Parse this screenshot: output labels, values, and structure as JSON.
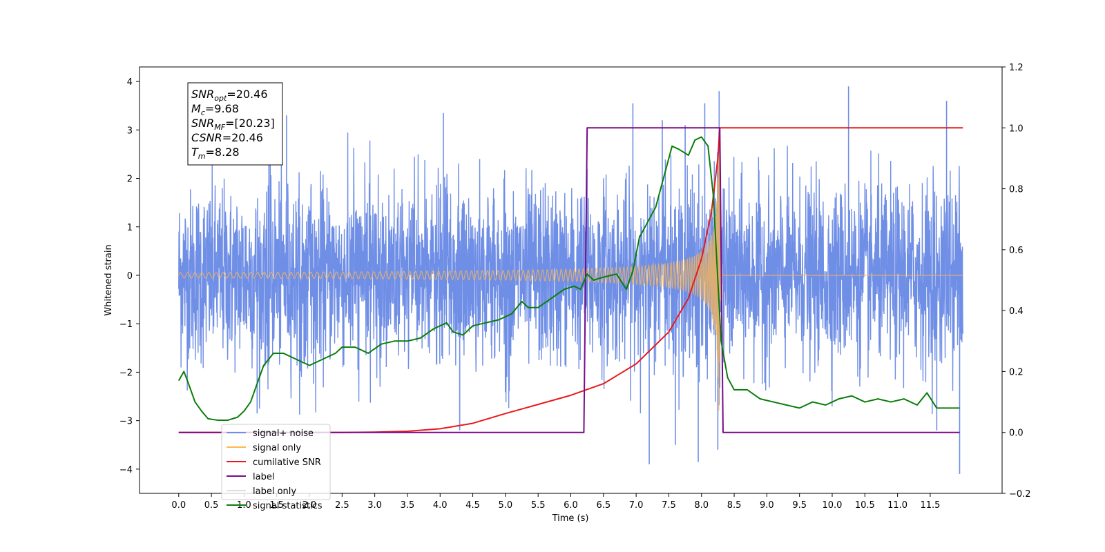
{
  "chart_data": {
    "type": "line",
    "xlabel": "Time (s)",
    "ylabel": "Whitened strain",
    "ylabel_right": "",
    "xlim": [
      -0.6,
      12.6
    ],
    "ylim": [
      -4.5,
      4.3
    ],
    "ylim_right": [
      -0.2,
      1.2
    ],
    "x_ticks": [
      0.0,
      0.5,
      1.0,
      1.5,
      2.0,
      2.5,
      3.0,
      3.5,
      4.0,
      4.5,
      5.0,
      5.5,
      6.0,
      6.5,
      7.0,
      7.5,
      8.0,
      8.5,
      9.0,
      9.5,
      10.0,
      10.5,
      11.0,
      11.5
    ],
    "x_tick_labels": [
      "0.0",
      "0.5",
      "1.0",
      "1.5",
      "2.0",
      "2.5",
      "3.0",
      "3.5",
      "4.0",
      "4.5",
      "5.0",
      "5.5",
      "6.0",
      "6.5",
      "7.0",
      "7.5",
      "8.0",
      "8.5",
      "9.0",
      "9.5",
      "10.0",
      "10.5",
      "11.0",
      "11.5"
    ],
    "y_ticks_left": [
      4,
      3,
      2,
      1,
      0,
      -1,
      -2,
      -3,
      -4
    ],
    "y_tick_labels_left": [
      "4",
      "3",
      "2",
      "1",
      "0",
      "−1",
      "−2",
      "−3",
      "−4"
    ],
    "y_ticks_right": [
      1.2,
      1.0,
      0.8,
      0.6,
      0.4,
      0.2,
      0.0,
      -0.2
    ],
    "y_tick_labels_right": [
      "1.2",
      "1.0",
      "0.8",
      "0.6",
      "0.4",
      "0.2",
      "0.0",
      "−0.2"
    ],
    "grid": false,
    "legend_position": "lower-left",
    "info_box": {
      "lines": [
        {
          "base": "SNR",
          "sub": "opt",
          "value": "=20.46"
        },
        {
          "base": "M",
          "sub": "c",
          "value": "=9.68"
        },
        {
          "base": "SNR",
          "sub": "MF",
          "value": "=[20.23]"
        },
        {
          "base": "CSNR",
          "sub": "",
          "value": "=20.46"
        },
        {
          "base": "T",
          "sub": "m",
          "value": "=8.28"
        }
      ]
    },
    "series": [
      {
        "name": "signal+ noise",
        "axis": "left",
        "color": "#6f8ee6",
        "style": "noise",
        "x_range": [
          0.0,
          12.0
        ],
        "noise_std": 0.9,
        "chirp": {
          "t_merger": 8.28,
          "peak_amplitude": 2.8
        },
        "spikes": [
          {
            "x": 1.4,
            "y": 3.2
          },
          {
            "x": 1.65,
            "y": 3.3
          },
          {
            "x": 4.05,
            "y": 3.35
          },
          {
            "x": 6.95,
            "y": 3.55
          },
          {
            "x": 7.4,
            "y": 3.2
          },
          {
            "x": 7.75,
            "y": 3.1
          },
          {
            "x": 8.05,
            "y": 3.55
          },
          {
            "x": 8.27,
            "y": 3.8
          },
          {
            "x": 10.25,
            "y": 3.9
          },
          {
            "x": 11.75,
            "y": 3.6
          },
          {
            "x": 1.2,
            "y": -2.85
          },
          {
            "x": 4.3,
            "y": -3.2
          },
          {
            "x": 7.2,
            "y": -3.9
          },
          {
            "x": 7.6,
            "y": -3.5
          },
          {
            "x": 7.95,
            "y": -3.85
          },
          {
            "x": 8.25,
            "y": -3.6
          },
          {
            "x": 11.95,
            "y": -4.1
          },
          {
            "x": 11.6,
            "y": -3.2
          }
        ]
      },
      {
        "name": "signal only",
        "axis": "left",
        "color": "#ffb74d",
        "style": "chirp",
        "x_range": [
          0.0,
          12.0
        ],
        "t_merger": 8.28,
        "peak_amplitude": 2.8
      },
      {
        "name": "cumilative SNR",
        "axis": "right",
        "color": "#e8191b",
        "points": [
          [
            0.0,
            0.0
          ],
          [
            2.5,
            0.0
          ],
          [
            3.0,
            0.001
          ],
          [
            3.5,
            0.004
          ],
          [
            4.0,
            0.012
          ],
          [
            4.5,
            0.03
          ],
          [
            5.0,
            0.062
          ],
          [
            5.5,
            0.092
          ],
          [
            6.0,
            0.122
          ],
          [
            6.5,
            0.16
          ],
          [
            7.0,
            0.225
          ],
          [
            7.5,
            0.33
          ],
          [
            7.8,
            0.44
          ],
          [
            8.0,
            0.57
          ],
          [
            8.15,
            0.72
          ],
          [
            8.25,
            0.9
          ],
          [
            8.28,
            1.0
          ],
          [
            12.0,
            1.0
          ]
        ]
      },
      {
        "name": "label",
        "axis": "right",
        "color": "#7a0a85",
        "points": [
          [
            0.0,
            0.0
          ],
          [
            6.2,
            0.0
          ],
          [
            6.25,
            1.0
          ],
          [
            8.28,
            1.0
          ],
          [
            8.33,
            0.0
          ],
          [
            11.95,
            0.0
          ]
        ]
      },
      {
        "name": "label only",
        "axis": "right",
        "color": "#dddddd",
        "hidden_in_plot": true,
        "points": []
      },
      {
        "name": "signal statistics",
        "axis": "right",
        "color": "#0a7d0a",
        "points": [
          [
            0.0,
            0.17
          ],
          [
            0.08,
            0.2
          ],
          [
            0.15,
            0.16
          ],
          [
            0.25,
            0.1
          ],
          [
            0.35,
            0.07
          ],
          [
            0.45,
            0.045
          ],
          [
            0.6,
            0.04
          ],
          [
            0.75,
            0.04
          ],
          [
            0.9,
            0.05
          ],
          [
            1.0,
            0.07
          ],
          [
            1.1,
            0.1
          ],
          [
            1.2,
            0.16
          ],
          [
            1.3,
            0.22
          ],
          [
            1.45,
            0.26
          ],
          [
            1.6,
            0.26
          ],
          [
            1.8,
            0.24
          ],
          [
            2.0,
            0.22
          ],
          [
            2.2,
            0.24
          ],
          [
            2.4,
            0.26
          ],
          [
            2.5,
            0.28
          ],
          [
            2.7,
            0.28
          ],
          [
            2.9,
            0.26
          ],
          [
            3.1,
            0.29
          ],
          [
            3.3,
            0.3
          ],
          [
            3.5,
            0.3
          ],
          [
            3.7,
            0.31
          ],
          [
            3.9,
            0.34
          ],
          [
            4.1,
            0.36
          ],
          [
            4.2,
            0.33
          ],
          [
            4.35,
            0.32
          ],
          [
            4.5,
            0.35
          ],
          [
            4.7,
            0.36
          ],
          [
            4.9,
            0.37
          ],
          [
            5.1,
            0.39
          ],
          [
            5.25,
            0.43
          ],
          [
            5.35,
            0.41
          ],
          [
            5.5,
            0.41
          ],
          [
            5.7,
            0.44
          ],
          [
            5.9,
            0.47
          ],
          [
            6.05,
            0.48
          ],
          [
            6.15,
            0.47
          ],
          [
            6.25,
            0.52
          ],
          [
            6.35,
            0.5
          ],
          [
            6.5,
            0.51
          ],
          [
            6.7,
            0.52
          ],
          [
            6.85,
            0.47
          ],
          [
            6.95,
            0.53
          ],
          [
            7.05,
            0.64
          ],
          [
            7.15,
            0.68
          ],
          [
            7.3,
            0.74
          ],
          [
            7.45,
            0.86
          ],
          [
            7.55,
            0.94
          ],
          [
            7.65,
            0.93
          ],
          [
            7.8,
            0.91
          ],
          [
            7.9,
            0.96
          ],
          [
            8.0,
            0.97
          ],
          [
            8.1,
            0.94
          ],
          [
            8.18,
            0.78
          ],
          [
            8.25,
            0.5
          ],
          [
            8.3,
            0.3
          ],
          [
            8.4,
            0.18
          ],
          [
            8.5,
            0.14
          ],
          [
            8.7,
            0.14
          ],
          [
            8.9,
            0.11
          ],
          [
            9.1,
            0.1
          ],
          [
            9.3,
            0.09
          ],
          [
            9.5,
            0.08
          ],
          [
            9.7,
            0.1
          ],
          [
            9.9,
            0.09
          ],
          [
            10.1,
            0.11
          ],
          [
            10.3,
            0.12
          ],
          [
            10.5,
            0.1
          ],
          [
            10.7,
            0.11
          ],
          [
            10.9,
            0.1
          ],
          [
            11.1,
            0.11
          ],
          [
            11.3,
            0.09
          ],
          [
            11.45,
            0.13
          ],
          [
            11.6,
            0.08
          ],
          [
            11.8,
            0.08
          ],
          [
            11.95,
            0.08
          ]
        ]
      }
    ]
  }
}
